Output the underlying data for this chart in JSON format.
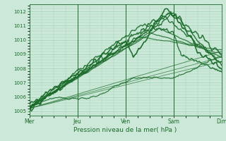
{
  "title": "",
  "xlabel": "Pression niveau de la mer( hPa )",
  "ylabel": "",
  "bg_color": "#cce8d8",
  "plot_bg_color": "#cce8d8",
  "grid_color": "#99ccb0",
  "line_color": "#1a6b2a",
  "yticks": [
    1005,
    1006,
    1007,
    1008,
    1009,
    1010,
    1011,
    1012
  ],
  "ylim": [
    1004.7,
    1012.5
  ],
  "xlim": [
    0,
    96
  ],
  "day_ticks": [
    0,
    24,
    48,
    72,
    96
  ],
  "day_labels": [
    "Mer",
    "Jeu",
    "Ven",
    "Sam",
    "Dim"
  ]
}
